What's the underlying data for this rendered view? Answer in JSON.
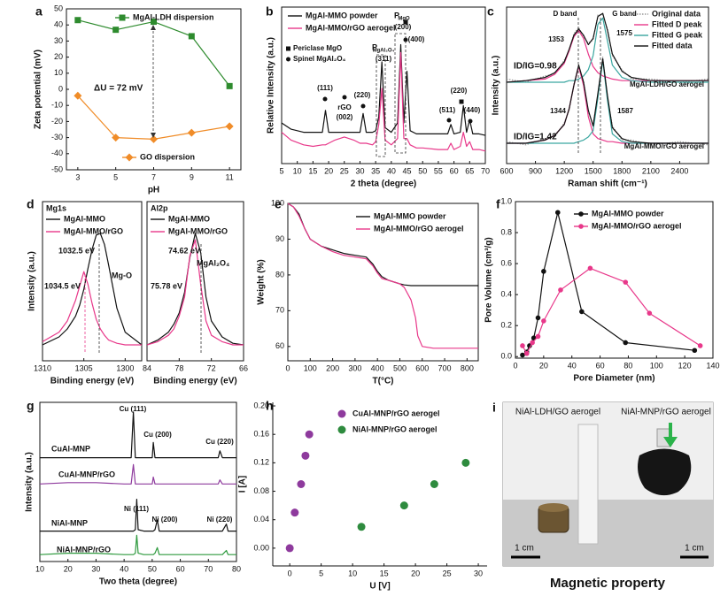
{
  "chart_data": [
    {
      "panel": "a",
      "type": "line",
      "xlabel": "pH",
      "ylabel": "Zeta potential (mV)",
      "x": [
        3,
        5,
        7,
        9,
        11
      ],
      "xlim": [
        2.4,
        11.6
      ],
      "xticks": [
        3,
        5,
        7,
        9,
        11
      ],
      "ylim": [
        -50,
        50
      ],
      "yticks": [
        -50,
        -40,
        -30,
        -20,
        -10,
        0,
        10,
        20,
        30,
        40,
        50
      ],
      "series": [
        {
          "name": "MgAl-LDH dispersion",
          "color": "#2e8b2e",
          "marker": "square",
          "values": [
            43,
            37,
            42,
            33,
            2
          ]
        },
        {
          "name": "GO dispersion",
          "color": "#f08c28",
          "marker": "diamond",
          "values": [
            -4,
            -30,
            -31,
            -27,
            -23
          ]
        }
      ],
      "annotations": [
        "ΔU = 72 mV"
      ]
    },
    {
      "panel": "b",
      "type": "line",
      "xlabel": "2 theta (degree)",
      "ylabel": "Relative Intensity (a.u.)",
      "x": [
        5,
        8,
        12,
        15,
        18,
        19,
        20,
        22,
        25,
        28,
        30,
        31,
        32,
        34,
        35,
        36,
        37,
        38,
        40,
        42,
        43,
        44,
        45,
        46,
        48,
        50,
        55,
        58,
        59,
        60,
        62,
        63,
        64,
        65,
        66,
        68,
        70
      ],
      "xlim": [
        5,
        70
      ],
      "xticks": [
        5,
        10,
        15,
        20,
        25,
        30,
        35,
        40,
        45,
        50,
        55,
        60,
        65,
        70
      ],
      "ylim": [
        0,
        10
      ],
      "series": [
        {
          "name": "MgAl-MMO powder",
          "color": "#111111",
          "values": [
            2.6,
            2.2,
            2.0,
            2.0,
            2.0,
            3.4,
            2.0,
            2.0,
            2.0,
            2.0,
            2.0,
            3.2,
            2.0,
            2.0,
            2.1,
            3.0,
            6.5,
            2.3,
            2.0,
            2.6,
            7.6,
            2.6,
            5.9,
            2.1,
            1.9,
            1.9,
            1.9,
            1.9,
            2.5,
            1.9,
            2.0,
            3.7,
            2.0,
            2.8,
            1.9,
            1.9,
            1.8
          ]
        },
        {
          "name": "MgAl-MMO/rGO aerogel",
          "color": "#e8388a",
          "values": [
            2.0,
            1.5,
            1.2,
            1.1,
            1.2,
            1.2,
            1.3,
            1.5,
            1.7,
            1.5,
            1.3,
            1.3,
            1.3,
            1.2,
            1.4,
            2.5,
            4.8,
            1.5,
            1.2,
            1.6,
            7.1,
            1.6,
            1.6,
            1.2,
            1.0,
            1.0,
            0.9,
            0.9,
            1.3,
            0.9,
            1.1,
            2.0,
            1.1,
            1.4,
            0.9,
            0.9,
            0.8
          ]
        }
      ],
      "annotations": [
        "(111)",
        "rGO",
        "(002)",
        "(220)",
        "P",
        "MgAl₂O₄",
        "(311)",
        "P",
        "MgO",
        "(200)",
        "(400)",
        "(511)",
        "(220)",
        "(440)",
        "Periclase MgO",
        "Spinel MgAl₂O₄"
      ]
    },
    {
      "panel": "c",
      "type": "line",
      "xlabel": "Raman shift (cm⁻¹)",
      "ylabel": "Intensity (a.u.)",
      "x": [
        600,
        800,
        1000,
        1100,
        1200,
        1250,
        1300,
        1350,
        1400,
        1450,
        1500,
        1550,
        1600,
        1650,
        1700,
        1800,
        1900,
        2100,
        2400,
        2700
      ],
      "xlim": [
        600,
        2700
      ],
      "xticks": [
        600,
        900,
        1200,
        1500,
        1800,
        2100,
        2400
      ],
      "ylim": [
        0,
        10
      ],
      "series": [
        {
          "name": "Original data",
          "color": "#999999",
          "dash": true,
          "values": [
            5.4,
            5.2,
            5.6,
            5.7,
            6.6,
            7.2,
            8.3,
            8.7,
            8.1,
            7.7,
            7.9,
            9.5,
            9.5,
            8.6,
            6.9,
            6.0,
            5.4,
            5.4,
            5.2,
            5.4
          ]
        },
        {
          "name": "Fitted D peak",
          "color": "#e8388a",
          "values": [
            5.2,
            5.3,
            5.4,
            5.7,
            6.4,
            7.2,
            8.1,
            8.5,
            8.0,
            7.0,
            6.2,
            5.8,
            5.6,
            5.5,
            5.4,
            5.3,
            5.3,
            5.3,
            5.3,
            5.3
          ]
        },
        {
          "name": "Fitted G peak",
          "color": "#3aa6a0",
          "values": [
            5.2,
            5.2,
            5.2,
            5.2,
            5.2,
            5.3,
            5.3,
            5.4,
            5.6,
            6.0,
            6.9,
            8.9,
            9.3,
            7.8,
            6.3,
            5.5,
            5.3,
            5.2,
            5.2,
            5.2
          ]
        },
        {
          "name": "Fitted data",
          "color": "#111111",
          "values": [
            5.2,
            5.3,
            5.5,
            5.8,
            6.5,
            7.3,
            8.2,
            8.6,
            8.2,
            7.6,
            8.0,
            9.4,
            9.6,
            8.5,
            7.0,
            5.9,
            5.5,
            5.3,
            5.3,
            5.3
          ]
        },
        {
          "color": "#999999",
          "dash": true,
          "values": [
            1.4,
            1.2,
            1.6,
            1.7,
            2.6,
            3.4,
            5.1,
            6.2,
            5.3,
            3.3,
            2.5,
            4.4,
            6.8,
            4.2,
            2.4,
            1.5,
            1.5,
            1.2,
            1.4,
            1.2
          ]
        },
        {
          "color": "#e8388a",
          "values": [
            1.3,
            1.3,
            1.5,
            1.8,
            2.5,
            3.5,
            5.0,
            6.2,
            5.0,
            3.0,
            1.9,
            1.6,
            1.5,
            1.4,
            1.4,
            1.3,
            1.3,
            1.3,
            1.3,
            1.3
          ]
        },
        {
          "color": "#3aa6a0",
          "values": [
            1.3,
            1.3,
            1.3,
            1.3,
            1.3,
            1.3,
            1.3,
            1.4,
            1.5,
            1.7,
            2.1,
            4.2,
            6.6,
            4.0,
            1.9,
            1.4,
            1.3,
            1.3,
            1.3,
            1.3
          ]
        },
        {
          "color": "#111111",
          "values": [
            1.3,
            1.3,
            1.5,
            1.8,
            2.5,
            3.5,
            5.0,
            6.3,
            5.2,
            3.4,
            2.4,
            4.5,
            6.7,
            4.3,
            2.3,
            1.6,
            1.4,
            1.3,
            1.3,
            1.3
          ]
        }
      ],
      "annotations": [
        "D band",
        "G band",
        "1353",
        "1575",
        "ID/IG=0.98",
        "MgAl-LDH/GO aerogel",
        "1344",
        "1587",
        "ID/IG=1.42",
        "MgAl-MMO/rGO aerogel"
      ]
    },
    {
      "panel": "d",
      "type": "line",
      "xlabel": "Binding energy (eV)",
      "ylabel": "Intensity (a.u.)",
      "x": [
        1310,
        1308,
        1307,
        1306,
        1305.5,
        1305,
        1304.5,
        1304,
        1303.5,
        1303,
        1302.5,
        1302,
        1301,
        1300,
        1298
      ],
      "xlim": [
        1310,
        1298
      ],
      "xticks": [
        1310,
        1305,
        1300
      ],
      "ylim": [
        0,
        10
      ],
      "series": [
        {
          "name": "MgAl-MMO",
          "color": "#111111",
          "values": [
            1.0,
            1.5,
            2.0,
            2.8,
            3.5,
            4.5,
            5.8,
            7.0,
            7.9,
            8.0,
            7.3,
            6.0,
            3.3,
            1.8,
            1.0
          ]
        },
        {
          "name": "MgAl-MMO/rGO",
          "color": "#e8388a",
          "values": [
            1.2,
            1.8,
            2.5,
            3.8,
            4.7,
            5.6,
            4.8,
            3.6,
            2.6,
            2.0,
            1.6,
            1.3,
            1.1,
            1.0,
            1.0
          ]
        }
      ],
      "annotations": [
        "Mg1s",
        "1032.5 eV",
        "1034.5 eV",
        "Mg-O"
      ]
    },
    {
      "type": "line",
      "xlabel": "Binding energy (eV)",
      "x": [
        84,
        82,
        80,
        79,
        78,
        77,
        76,
        75,
        74,
        73,
        72,
        70,
        68,
        66
      ],
      "xlim": [
        84,
        66
      ],
      "xticks": [
        84,
        78,
        72,
        66
      ],
      "ylim": [
        0,
        10
      ],
      "series": [
        {
          "name": "MgAl-MMO",
          "color": "#111111",
          "values": [
            1.0,
            1.3,
            1.8,
            2.3,
            3.0,
            4.3,
            6.5,
            8.0,
            6.8,
            4.0,
            2.5,
            1.5,
            1.1,
            1.0
          ]
        },
        {
          "name": "MgAl-MMO/rGO",
          "color": "#e8388a",
          "values": [
            1.0,
            1.2,
            1.6,
            2.0,
            2.8,
            4.0,
            6.6,
            7.6,
            4.8,
            2.5,
            1.6,
            1.2,
            1.0,
            1.0
          ]
        }
      ],
      "annotations": [
        "Al2p",
        "74.62 eV",
        "75.78 eV",
        "MgAl₂O₄"
      ]
    },
    {
      "panel": "e",
      "type": "line",
      "xlabel": "T(°C)",
      "ylabel": "Weight (%)",
      "x": [
        0,
        25,
        50,
        75,
        100,
        150,
        200,
        250,
        300,
        350,
        380,
        400,
        420,
        450,
        500,
        520,
        550,
        570,
        580,
        600,
        650,
        700,
        800,
        850
      ],
      "xlim": [
        0,
        850
      ],
      "xticks": [
        0,
        100,
        200,
        300,
        400,
        500,
        600,
        700,
        800
      ],
      "ylim": [
        56,
        100
      ],
      "yticks": [
        60,
        70,
        80,
        90,
        100
      ],
      "series": [
        {
          "name": "MgAl-MMO powder",
          "color": "#111111",
          "values": [
            100,
            99,
            97,
            93,
            90,
            88,
            87,
            86,
            85.5,
            85,
            83,
            81,
            79.5,
            78.5,
            77.5,
            77.2,
            77,
            77,
            77,
            77,
            77,
            77,
            77,
            77
          ]
        },
        {
          "name": "MgAl-MMO/rGO aerogel",
          "color": "#e8388a",
          "values": [
            100,
            99,
            96.5,
            93,
            90,
            88,
            86.5,
            85.5,
            85,
            84.5,
            82.5,
            80.5,
            79,
            78.5,
            77.5,
            76.5,
            73,
            68,
            63,
            60,
            59.5,
            59.5,
            59.5,
            59.5
          ]
        }
      ]
    },
    {
      "panel": "f",
      "type": "line",
      "xlabel": "Pore Diameter (nm)",
      "ylabel": "Pore Volume (cm³/g)",
      "xlim": [
        0,
        140
      ],
      "xticks": [
        0,
        20,
        40,
        60,
        80,
        100,
        120,
        140
      ],
      "ylim": [
        -0.01,
        1.0
      ],
      "yticks": [
        {
          "value": 0,
          "label": "0.0"
        },
        0.2,
        0.4,
        0.6,
        0.8,
        {
          "value": 1,
          "label": "1.0"
        }
      ],
      "series": [
        {
          "name": "MgAl-MMO powder",
          "color": "#111111",
          "marker": "circle",
          "x": [
            5,
            8,
            10,
            13,
            16,
            20,
            30,
            47,
            78,
            127
          ],
          "values": [
            0.01,
            0.03,
            0.07,
            0.12,
            0.25,
            0.55,
            0.93,
            0.29,
            0.09,
            0.04
          ]
        },
        {
          "name": "MgAl-MMO/rGO aerogel",
          "color": "#e8388a",
          "marker": "circle",
          "x": [
            5,
            8,
            12,
            16,
            20,
            32,
            53,
            78,
            95,
            131
          ],
          "values": [
            0.07,
            0.02,
            0.09,
            0.13,
            0.23,
            0.43,
            0.57,
            0.48,
            0.28,
            0.07
          ]
        }
      ]
    },
    {
      "panel": "g",
      "type": "line",
      "xlabel": "Two theta (degree)",
      "ylabel": "Intensity (a.u.)",
      "x": [
        10,
        20,
        30,
        40,
        42.5,
        43.3,
        44,
        44.5,
        45,
        47,
        50,
        50.4,
        51,
        51.8,
        52.5,
        60,
        70,
        73.5,
        74.1,
        75,
        76.4,
        77,
        80
      ],
      "xlim": [
        10,
        80
      ],
      "xticks": [
        10,
        20,
        30,
        40,
        50,
        60,
        70,
        80
      ],
      "ylim": [
        -1,
        10.5
      ],
      "series": [
        {
          "name": "CuAl-MNP",
          "color": "#111111",
          "values": [
            6.5,
            6.5,
            6.5,
            6.5,
            6.5,
            9.8,
            6.5,
            6.5,
            6.5,
            6.5,
            6.5,
            7.6,
            6.5,
            6.5,
            6.5,
            6.5,
            6.5,
            6.5,
            7.0,
            6.5,
            6.5,
            6.5,
            6.5
          ]
        },
        {
          "name": "CuAl-MNP/rGO",
          "color": "#8e3a9d",
          "values": [
            4.6,
            4.7,
            4.7,
            4.6,
            4.6,
            6.0,
            4.6,
            4.6,
            4.6,
            4.6,
            4.6,
            5.1,
            4.6,
            4.6,
            4.6,
            4.6,
            4.6,
            4.6,
            4.9,
            4.6,
            4.6,
            4.6,
            4.6
          ]
        },
        {
          "name": "NiAl-MNP",
          "color": "#111111",
          "values": [
            1.2,
            1.2,
            1.2,
            1.2,
            1.2,
            1.2,
            1.3,
            3.5,
            1.3,
            1.2,
            1.2,
            1.2,
            1.3,
            2.0,
            1.2,
            1.2,
            1.2,
            1.2,
            1.2,
            1.2,
            1.7,
            1.2,
            1.2
          ]
        },
        {
          "name": "NiAl-MNP/rGO",
          "color": "#2e9a3e",
          "values": [
            -0.5,
            -0.4,
            -0.4,
            -0.5,
            -0.5,
            -0.5,
            -0.4,
            0.9,
            -0.4,
            -0.5,
            -0.5,
            -0.5,
            -0.4,
            0.0,
            -0.5,
            -0.5,
            -0.5,
            -0.5,
            -0.5,
            -0.5,
            -0.2,
            -0.5,
            -0.5
          ]
        }
      ],
      "annotations": [
        "Cu (111)",
        "Cu (200)",
        "Cu (220)",
        "Ni (111)",
        "Ni (200)",
        "Ni (220)"
      ]
    },
    {
      "panel": "h",
      "type": "scatter",
      "xlabel": "U [V]",
      "ylabel": "I [A]",
      "xlim": [
        -2.7,
        31.4
      ],
      "xticks": [
        0,
        5,
        10,
        15,
        20,
        25,
        30
      ],
      "ylim": [
        -0.025,
        0.205
      ],
      "yticks": [
        {
          "value": 0,
          "label": "0.00"
        },
        0.04,
        0.08,
        0.12,
        0.16,
        {
          "value": 0.2,
          "label": "0.20"
        }
      ],
      "series": [
        {
          "name": "CuAl-MNP/rGO aerogel",
          "color": "#8e3a9d",
          "x": [
            0,
            0.8,
            1.8,
            2.5,
            3.1
          ],
          "values": [
            0,
            0.05,
            0.09,
            0.13,
            0.16
          ]
        },
        {
          "name": "NiAl-MNP/rGO aerogel",
          "color": "#2e8b3e",
          "x": [
            11.4,
            18.2,
            23,
            28
          ],
          "values": [
            0.03,
            0.06,
            0.09,
            0.12
          ]
        }
      ]
    }
  ],
  "photo_panel": {
    "panel": "i",
    "labels": [
      "NiAl-LDH/GO aerogel",
      "NiAl-MNP/rGO aerogel"
    ],
    "scale_bars": [
      "1 cm",
      "1 cm"
    ],
    "caption": "Magnetic property"
  }
}
